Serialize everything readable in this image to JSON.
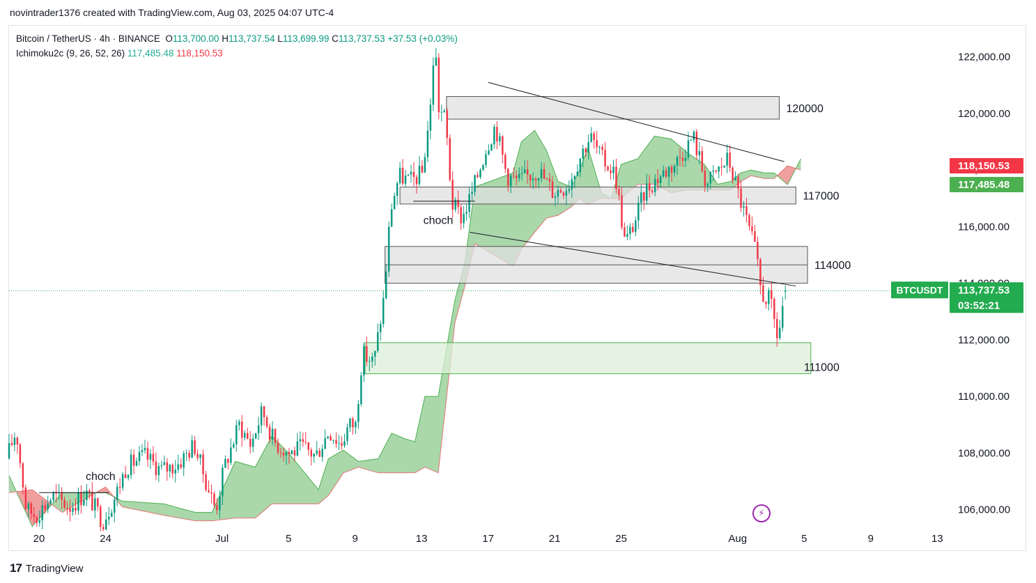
{
  "header": {
    "credit": "novintrader1376 created with TradingView.com, Aug 03, 2025 04:07 UTC-4"
  },
  "legend": {
    "symbol": "Bitcoin / TetherUS · 4h · BINANCE",
    "open_label": "O",
    "open": "113,700.00",
    "high_label": "H",
    "high": "113,737.54",
    "low_label": "L",
    "low": "113,699.99",
    "close_label": "C",
    "close": "113,737.53",
    "change": "+37.53 (+0.03%)",
    "indicator_name": "Ichimoku2c (9, 26, 52, 26)",
    "indicator_val1": "117,485.48",
    "indicator_val2": "118,150.53"
  },
  "footer": {
    "brand": "TradingView"
  },
  "chart_data": {
    "type": "candlestick",
    "symbol": "BTCUSDT",
    "timeframe": "4h",
    "ylim": [
      105300,
      123100
    ],
    "y_ticks": [
      {
        "value": 122000,
        "label": "122,000.00"
      },
      {
        "value": 120000,
        "label": "120,000.00"
      },
      {
        "value": 118000,
        "label": "118,000.00"
      },
      {
        "value": 116000,
        "label": "116,000.00"
      },
      {
        "value": 114000,
        "label": "114,000.00"
      },
      {
        "value": 112000,
        "label": "112,000.00"
      },
      {
        "value": 110000,
        "label": "110,000.00"
      },
      {
        "value": 108000,
        "label": "108,000.00"
      },
      {
        "value": 106000,
        "label": "106,000.00"
      }
    ],
    "x_range_days": [
      -12.8,
      43.7
    ],
    "x_ticks": [
      {
        "day": -11,
        "label": "20"
      },
      {
        "day": -7,
        "label": "24"
      },
      {
        "day": 0,
        "label": "Jul"
      },
      {
        "day": 4,
        "label": "5"
      },
      {
        "day": 8,
        "label": "9"
      },
      {
        "day": 12,
        "label": "13"
      },
      {
        "day": 16,
        "label": "17"
      },
      {
        "day": 20,
        "label": "21"
      },
      {
        "day": 24,
        "label": "25"
      },
      {
        "day": 31,
        "label": "Aug"
      },
      {
        "day": 35,
        "label": "5"
      },
      {
        "day": 39,
        "label": "9"
      },
      {
        "day": 43,
        "label": "13"
      }
    ],
    "price_path": [
      [
        -12.8,
        107800
      ],
      [
        -12.2,
        108800
      ],
      [
        -11.6,
        106000
      ],
      [
        -11.0,
        105800
      ],
      [
        -10.0,
        106500
      ],
      [
        -9.0,
        106100
      ],
      [
        -8.0,
        106600
      ],
      [
        -7.0,
        105600
      ],
      [
        -6.3,
        106400
      ],
      [
        -5.6,
        107500
      ],
      [
        -4.5,
        107900
      ],
      [
        -3.5,
        107400
      ],
      [
        -2.5,
        107600
      ],
      [
        -1.5,
        108300
      ],
      [
        -0.8,
        107000
      ],
      [
        -0.2,
        106000
      ],
      [
        0.3,
        107500
      ],
      [
        1.2,
        109000
      ],
      [
        1.9,
        108300
      ],
      [
        2.6,
        109500
      ],
      [
        3.3,
        108400
      ],
      [
        4.2,
        108000
      ],
      [
        5.0,
        108200
      ],
      [
        5.8,
        107900
      ],
      [
        6.6,
        108800
      ],
      [
        7.3,
        108300
      ],
      [
        7.8,
        109000
      ],
      [
        8.2,
        109000
      ],
      [
        8.6,
        111500
      ],
      [
        9.3,
        111200
      ],
      [
        9.9,
        113500
      ],
      [
        10.3,
        116600
      ],
      [
        10.8,
        117800
      ],
      [
        11.5,
        117600
      ],
      [
        12.2,
        117900
      ],
      [
        12.7,
        120200
      ],
      [
        12.95,
        122700
      ],
      [
        13.2,
        120200
      ],
      [
        13.6,
        119800
      ],
      [
        14.0,
        116800
      ],
      [
        14.6,
        116300
      ],
      [
        15.2,
        117200
      ],
      [
        16.0,
        118700
      ],
      [
        16.6,
        119600
      ],
      [
        17.3,
        117800
      ],
      [
        18.0,
        117600
      ],
      [
        19.2,
        118000
      ],
      [
        20.1,
        117200
      ],
      [
        21.0,
        117500
      ],
      [
        21.7,
        118500
      ],
      [
        22.3,
        119200
      ],
      [
        23.0,
        118400
      ],
      [
        23.8,
        117900
      ],
      [
        24.4,
        115400
      ],
      [
        25.0,
        116200
      ],
      [
        25.6,
        117300
      ],
      [
        26.5,
        117800
      ],
      [
        27.5,
        118300
      ],
      [
        28.5,
        119200
      ],
      [
        29.3,
        117500
      ],
      [
        30.0,
        118000
      ],
      [
        30.6,
        118400
      ],
      [
        31.2,
        117200
      ],
      [
        31.7,
        116200
      ],
      [
        32.2,
        115200
      ],
      [
        32.6,
        113600
      ],
      [
        33.1,
        113400
      ],
      [
        33.6,
        112000
      ],
      [
        34.0,
        113737.53
      ]
    ],
    "cloud": {
      "description": "Ichimoku cloud (span A / span B)",
      "span_a": [
        [
          -12.8,
          107200
        ],
        [
          -11.4,
          105400
        ],
        [
          -9.6,
          106600
        ],
        [
          -7.0,
          106600
        ],
        [
          -6.0,
          106300
        ],
        [
          -3.5,
          106200
        ],
        [
          -1.6,
          105900
        ],
        [
          -0.6,
          105900
        ],
        [
          0.8,
          107700
        ],
        [
          2.0,
          107500
        ],
        [
          3.0,
          108600
        ],
        [
          4.0,
          108000
        ],
        [
          5.8,
          106700
        ],
        [
          6.4,
          107800
        ],
        [
          7.3,
          108100
        ],
        [
          8.2,
          107700
        ],
        [
          9.4,
          107800
        ],
        [
          10.2,
          108700
        ],
        [
          11.0,
          108500
        ],
        [
          11.6,
          108400
        ],
        [
          12.2,
          110000
        ],
        [
          13.0,
          110000
        ],
        [
          14.0,
          113400
        ],
        [
          14.6,
          114700
        ],
        [
          15.2,
          117400
        ],
        [
          17.5,
          117900
        ],
        [
          18.0,
          119000
        ],
        [
          18.8,
          119400
        ],
        [
          19.5,
          118700
        ],
        [
          20.2,
          117600
        ],
        [
          21.0,
          117400
        ],
        [
          21.5,
          118000
        ],
        [
          22.0,
          118800
        ],
        [
          22.8,
          117200
        ],
        [
          23.4,
          117000
        ],
        [
          24.0,
          118200
        ],
        [
          25.0,
          118400
        ],
        [
          26.0,
          119200
        ],
        [
          27.0,
          119100
        ],
        [
          28.0,
          118600
        ],
        [
          29.0,
          118200
        ],
        [
          29.8,
          117500
        ],
        [
          30.6,
          117600
        ],
        [
          31.2,
          117900
        ],
        [
          31.8,
          118000
        ],
        [
          32.6,
          117900
        ],
        [
          33.2,
          117900
        ],
        [
          34.0,
          117485.48
        ],
        [
          34.8,
          118400
        ]
      ],
      "span_b": [
        [
          -12.8,
          106600
        ],
        [
          -11.4,
          106700
        ],
        [
          -9.6,
          105900
        ],
        [
          -7.0,
          106800
        ],
        [
          -6.0,
          106100
        ],
        [
          -3.5,
          105800
        ],
        [
          -1.6,
          105600
        ],
        [
          -0.6,
          105600
        ],
        [
          0.8,
          105700
        ],
        [
          2.0,
          105700
        ],
        [
          3.0,
          106200
        ],
        [
          4.0,
          106200
        ],
        [
          5.8,
          106200
        ],
        [
          6.4,
          106500
        ],
        [
          7.3,
          107300
        ],
        [
          8.2,
          107500
        ],
        [
          9.4,
          107300
        ],
        [
          10.2,
          107300
        ],
        [
          11.0,
          107300
        ],
        [
          11.6,
          107300
        ],
        [
          12.2,
          107500
        ],
        [
          13.0,
          107300
        ],
        [
          14.0,
          112600
        ],
        [
          14.6,
          113900
        ],
        [
          15.2,
          115400
        ],
        [
          17.5,
          114600
        ],
        [
          18.0,
          115200
        ],
        [
          18.8,
          115800
        ],
        [
          19.5,
          116300
        ],
        [
          20.2,
          116400
        ],
        [
          21.0,
          116700
        ],
        [
          21.5,
          117000
        ],
        [
          22.0,
          116800
        ],
        [
          22.8,
          117000
        ],
        [
          23.4,
          117000
        ],
        [
          24.0,
          117000
        ],
        [
          25.0,
          117500
        ],
        [
          26.0,
          117500
        ],
        [
          27.0,
          117200
        ],
        [
          28.0,
          117300
        ],
        [
          29.0,
          117300
        ],
        [
          29.8,
          117300
        ],
        [
          30.6,
          117300
        ],
        [
          31.2,
          117600
        ],
        [
          31.8,
          117800
        ],
        [
          32.6,
          117700
        ],
        [
          33.2,
          117700
        ],
        [
          34.0,
          118150.53
        ],
        [
          34.8,
          118000
        ]
      ]
    },
    "zones": [
      {
        "label": "120000",
        "low": 119800,
        "high": 120600,
        "x0": 13.5,
        "x1": 33.5,
        "fill": "#e0e0e0",
        "border": "#555555"
      },
      {
        "label": "117000",
        "low": 116800,
        "high": 117400,
        "x0": 10.7,
        "x1": 34.5,
        "fill": "#e0e0e0",
        "border": "#555555"
      },
      {
        "label": "114000",
        "low": 114000,
        "high": 115300,
        "x0": 9.8,
        "x1": 35.2,
        "fill": "#e0e0e0",
        "border": "#555555"
      },
      {
        "label": "111000",
        "low": 110800,
        "high": 111900,
        "x0": 8.6,
        "x1": 35.4,
        "fill": "#dcefd8",
        "border": "#4caf50"
      }
    ],
    "zone_midlines": [
      {
        "zone": "114000",
        "value": 114650
      }
    ],
    "trendlines": [
      {
        "points": [
          [
            16.0,
            121100
          ],
          [
            33.8,
            118300
          ]
        ]
      },
      {
        "points": [
          [
            14.9,
            115800
          ],
          [
            34.5,
            113900
          ]
        ]
      },
      {
        "points": [
          [
            11.5,
            116900
          ],
          [
            15.2,
            116900
          ]
        ]
      },
      {
        "points": [
          [
            -11.0,
            106600
          ],
          [
            -6.8,
            106600
          ]
        ]
      }
    ],
    "annotations": [
      {
        "text": "choch",
        "day": 13.0,
        "price": 116100
      },
      {
        "text": "choch",
        "day": -7.3,
        "price": 107050
      }
    ],
    "last_price_line": 113737.53,
    "price_badges": [
      {
        "label": "",
        "value": "118,150.53",
        "color": "#f23645"
      },
      {
        "label": "",
        "value": "117,485.48",
        "color": "#4caf50"
      },
      {
        "label": "BTCUSDT",
        "value": "113,737.53",
        "countdown": "03:52:21",
        "color": "#22ab4f"
      }
    ],
    "colors": {
      "up": "#089981",
      "down": "#f23645",
      "cloud_bull": "#a5d6a7",
      "cloud_bear": "#ef9a9a",
      "span_a_line": "#4caf50",
      "span_b_line": "#e57373"
    }
  }
}
